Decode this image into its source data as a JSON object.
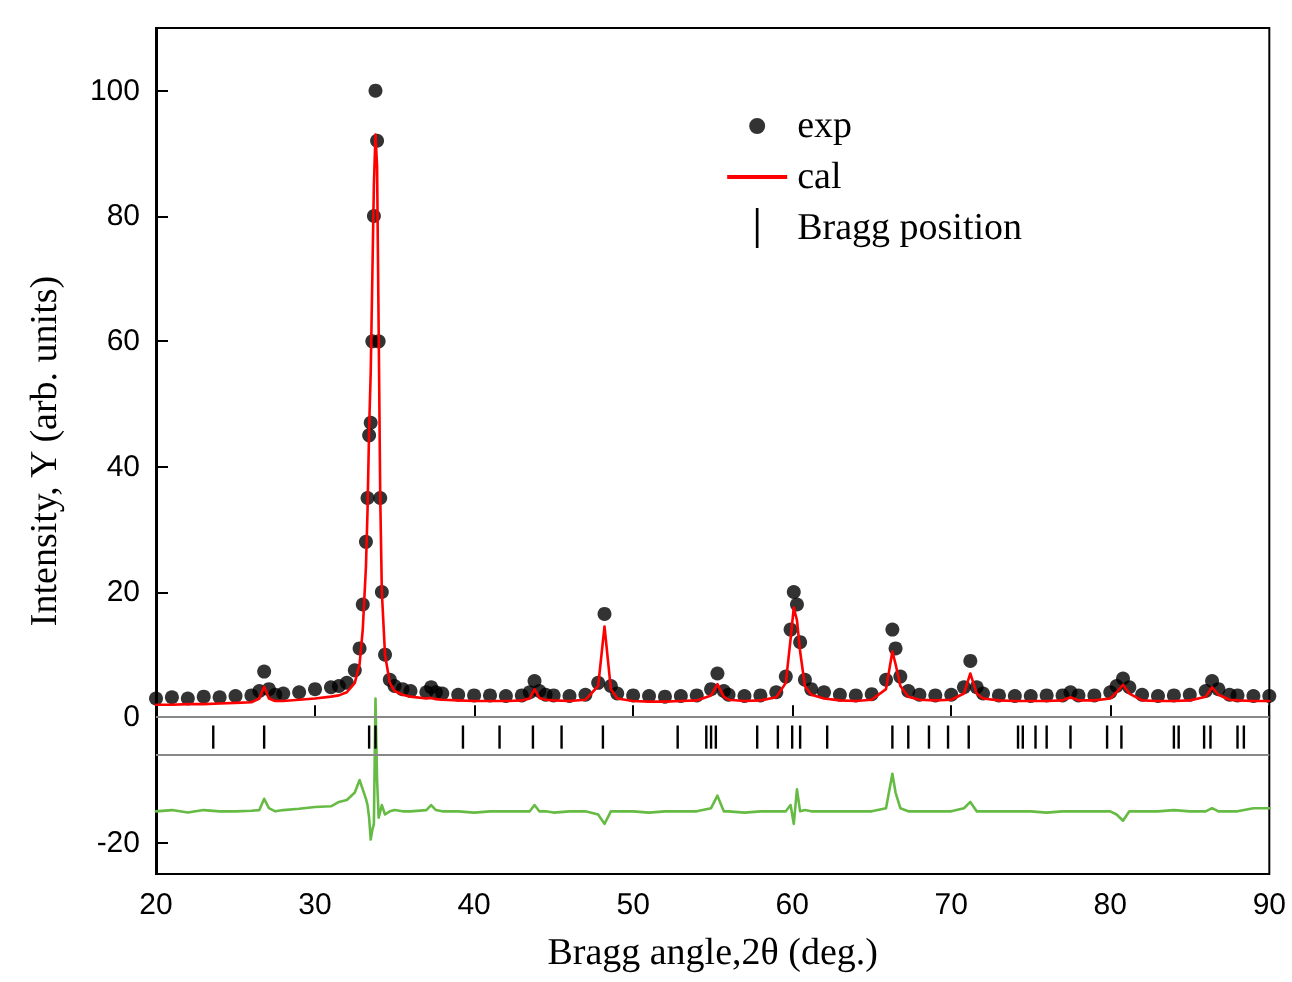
{
  "chart_data": {
    "type": "scatter",
    "xlabel": "Bragg angle,2θ (deg.)",
    "ylabel": "Intensity, Y (arb. units)",
    "xlim": [
      20,
      90
    ],
    "xticks": [
      20,
      30,
      40,
      50,
      60,
      70,
      80,
      90
    ],
    "ylim": [
      -25,
      110
    ],
    "yticks": [
      -20,
      0,
      20,
      40,
      60,
      80,
      100
    ],
    "grid": false,
    "legend": "top right",
    "x": [
      20,
      21,
      22,
      23,
      24,
      25,
      26,
      26.5,
      26.8,
      27.1,
      27.5,
      28,
      29,
      30,
      31,
      31.5,
      32,
      32.5,
      32.8,
      33,
      33.2,
      33.3,
      33.4,
      33.5,
      33.6,
      33.7,
      33.8,
      33.9,
      34,
      34.1,
      34.2,
      34.4,
      34.7,
      35,
      35.5,
      36,
      37,
      37.3,
      37.6,
      38,
      39,
      40,
      41,
      42,
      43,
      43.5,
      43.8,
      44.1,
      44.5,
      45,
      46,
      47,
      47.8,
      48.2,
      48.6,
      49,
      50,
      51,
      52,
      53,
      54,
      54.9,
      55.3,
      55.7,
      56,
      57,
      58,
      59,
      59.6,
      59.9,
      60.1,
      60.3,
      60.5,
      60.8,
      61.2,
      62,
      63,
      64,
      65,
      65.9,
      66.3,
      66.5,
      66.8,
      67.3,
      68,
      69,
      70,
      70.8,
      71.2,
      71.6,
      72,
      73,
      74,
      75,
      76,
      77,
      77.5,
      78,
      79,
      80,
      80.4,
      80.8,
      81.2,
      82,
      83,
      84,
      85,
      86,
      86.4,
      86.8,
      87.5,
      88,
      89,
      90
    ],
    "series": [
      {
        "name": "exp",
        "marker": "circle",
        "color": "#000000",
        "values": [
          3.0,
          3.2,
          3.0,
          3.3,
          3.2,
          3.4,
          3.5,
          4.2,
          7.3,
          4.5,
          3.6,
          3.8,
          4.0,
          4.5,
          4.8,
          5.0,
          5.5,
          7.5,
          11,
          18,
          28,
          35,
          45,
          47,
          60,
          80,
          100,
          92,
          60,
          35,
          20,
          10,
          6,
          5,
          4.5,
          4.2,
          4.0,
          4.8,
          4.0,
          3.8,
          3.6,
          3.5,
          3.5,
          3.4,
          3.5,
          4.0,
          5.8,
          4.2,
          3.6,
          3.5,
          3.4,
          3.6,
          5.5,
          16.5,
          5,
          3.8,
          3.5,
          3.4,
          3.3,
          3.4,
          3.5,
          4.5,
          7,
          4.2,
          3.6,
          3.4,
          3.5,
          4.0,
          6.5,
          14,
          20,
          18,
          12,
          6,
          4.5,
          4.0,
          3.6,
          3.5,
          3.7,
          6,
          14,
          11,
          6.5,
          4.2,
          3.6,
          3.5,
          3.6,
          4.8,
          9,
          4.8,
          3.8,
          3.5,
          3.4,
          3.4,
          3.5,
          3.5,
          4.0,
          3.5,
          3.5,
          4.0,
          5.0,
          6.2,
          4.8,
          3.6,
          3.4,
          3.5,
          3.6,
          4.2,
          5.8,
          4.5,
          3.6,
          3.5,
          3.4,
          3.4
        ]
      },
      {
        "name": "cal",
        "type": "line",
        "marker": "none",
        "line_style": "solid",
        "color": "#ff0000",
        "values": [
          2.0,
          2.0,
          2.1,
          2.1,
          2.2,
          2.3,
          2.4,
          3.0,
          4.9,
          3.0,
          2.6,
          2.6,
          2.8,
          3.0,
          3.3,
          3.5,
          4.0,
          5.5,
          8.5,
          14,
          24,
          33,
          46,
          55,
          70,
          85,
          93,
          88,
          62,
          35,
          20,
          10,
          5.5,
          4.2,
          3.6,
          3.3,
          3.0,
          3.1,
          2.9,
          2.8,
          2.7,
          2.6,
          2.6,
          2.6,
          2.7,
          3.0,
          4.5,
          3.1,
          2.8,
          2.7,
          2.6,
          2.8,
          5.0,
          14.5,
          4.5,
          3.0,
          2.6,
          2.5,
          2.5,
          2.6,
          2.7,
          3.5,
          5.3,
          3.3,
          2.8,
          2.6,
          2.7,
          3.2,
          5.5,
          12.5,
          17.5,
          15.5,
          10.5,
          5,
          3.6,
          3.0,
          2.7,
          2.6,
          2.8,
          4.5,
          10.5,
          8.5,
          5,
          3.3,
          2.8,
          2.7,
          2.8,
          3.8,
          7,
          3.8,
          3.0,
          2.7,
          2.6,
          2.6,
          2.6,
          2.7,
          3.2,
          2.7,
          2.7,
          3.0,
          4.0,
          5.2,
          3.8,
          2.7,
          2.6,
          2.6,
          2.7,
          3.3,
          4.8,
          3.6,
          2.8,
          2.7,
          2.6,
          2.6
        ]
      },
      {
        "name": "Bragg position",
        "type": "bar",
        "color": "#000000",
        "x": [
          23.6,
          26.8,
          33.4,
          33.8,
          39.3,
          41.6,
          43.7,
          45.5,
          48.1,
          52.8,
          54.6,
          54.9,
          55.2,
          57.8,
          59.1,
          60.0,
          60.5,
          62.2,
          66.3,
          67.3,
          68.6,
          69.8,
          71.1,
          74.2,
          74.5,
          75.3,
          76.0,
          77.5,
          79.8,
          80.7,
          84.0,
          84.3,
          85.9,
          86.3,
          88.0,
          88.4
        ],
        "base": [
          -5,
          -5,
          -5,
          -5,
          -5,
          -5,
          -5,
          -5,
          -5,
          -5,
          -5,
          -5,
          -5,
          -5,
          -5,
          -5,
          -5,
          -5,
          -5,
          -5,
          -5,
          -5,
          -5,
          -5,
          -5,
          -5,
          -5,
          -5,
          -5,
          -5,
          -5,
          -5,
          -5,
          -5,
          -5,
          -5
        ],
        "values": [
          3.7,
          3.7,
          3.7,
          3.7,
          3.7,
          3.7,
          3.7,
          3.7,
          3.7,
          3.7,
          3.7,
          3.7,
          3.7,
          3.7,
          3.7,
          3.7,
          3.7,
          3.7,
          3.7,
          3.7,
          3.7,
          3.7,
          3.7,
          3.7,
          3.7,
          3.7,
          3.7,
          3.7,
          3.7,
          3.7,
          3.7,
          3.7,
          3.7,
          3.7,
          3.7,
          3.7
        ]
      },
      {
        "type": "line",
        "marker": "none",
        "line_style": "solid",
        "color": "#66bb44",
        "values": [
          -15,
          -14.8,
          -15.2,
          -14.8,
          -15,
          -15,
          -14.9,
          -14.8,
          -13,
          -14.5,
          -15,
          -14.8,
          -14.6,
          -14.3,
          -14.2,
          -13.5,
          -13.2,
          -12.0,
          -10.0,
          -11.5,
          -13,
          -14,
          -16,
          -19.5,
          -18,
          -17,
          3,
          -10,
          -16,
          -15,
          -14,
          -15.5,
          -15,
          -14.8,
          -15,
          -15,
          -14.8,
          -14.0,
          -14.8,
          -15,
          -15,
          -15.2,
          -15,
          -15,
          -15,
          -15,
          -14,
          -15,
          -15,
          -15.2,
          -15,
          -15,
          -15.5,
          -17,
          -15,
          -15,
          -15,
          -15.2,
          -15,
          -15,
          -15,
          -14.5,
          -12.5,
          -15,
          -15,
          -15.2,
          -15,
          -15,
          -15,
          -14,
          -17,
          -11.5,
          -15,
          -14.8,
          -15,
          -15,
          -15,
          -15,
          -15,
          -14.5,
          -9,
          -12,
          -14.5,
          -15,
          -15,
          -15,
          -15,
          -14.5,
          -13.5,
          -15,
          -15,
          -15,
          -15,
          -15,
          -15.2,
          -15,
          -15,
          -15,
          -15,
          -15,
          -15.5,
          -16.5,
          -15,
          -15,
          -15,
          -14.8,
          -15,
          -15,
          -14.5,
          -15,
          -15,
          -15,
          -14.5,
          -14.5
        ]
      }
    ],
    "ref_lines": [
      {
        "axis": "y",
        "value": 0,
        "color": "#888888"
      },
      {
        "axis": "y",
        "value": -6,
        "color": "#888888"
      }
    ]
  }
}
